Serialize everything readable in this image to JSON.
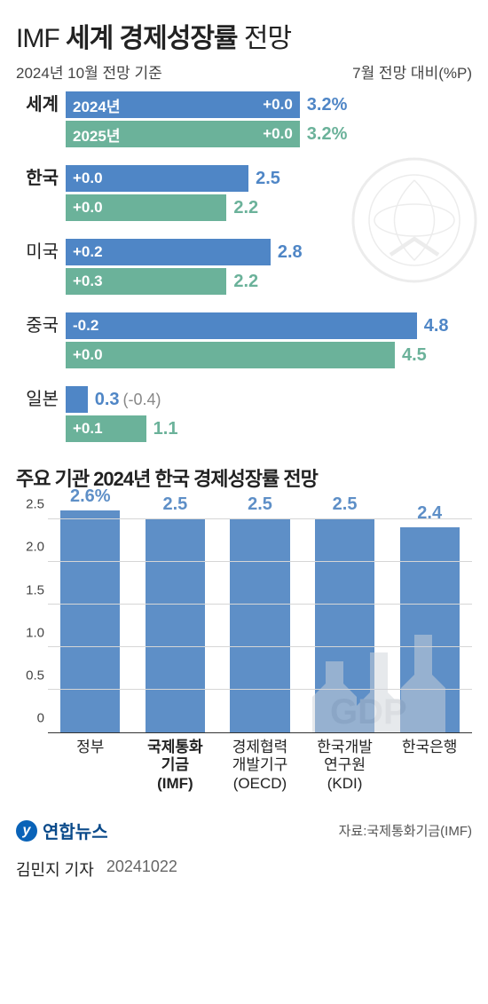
{
  "title_prefix": "IMF",
  "title_bold": "세계 경제성장률",
  "title_suffix": "전망",
  "subhead_left": "2024년 10월 전망 기준",
  "subhead_right": "7월 전망 대비(%P)",
  "hbar": {
    "max_value": 5.0,
    "color_2024": "#4f86c6",
    "color_2025": "#6bb29a",
    "text_color_2024": "#4f86c6",
    "text_color_2025": "#6bb29a",
    "groups": [
      {
        "label": "세계",
        "bold": true,
        "show_year_inside": true,
        "bars": [
          {
            "year": "2024년",
            "value": 3.2,
            "value_text": "3.2%",
            "delta": "+0.0"
          },
          {
            "year": "2025년",
            "value": 3.2,
            "value_text": "3.2%",
            "delta": "+0.0"
          }
        ]
      },
      {
        "label": "한국",
        "bold": true,
        "bars": [
          {
            "value": 2.5,
            "value_text": "2.5",
            "delta": "+0.0"
          },
          {
            "value": 2.2,
            "value_text": "2.2",
            "delta": "+0.0"
          }
        ]
      },
      {
        "label": "미국",
        "bars": [
          {
            "value": 2.8,
            "value_text": "2.8",
            "delta": "+0.2"
          },
          {
            "value": 2.2,
            "value_text": "2.2",
            "delta": "+0.3"
          }
        ]
      },
      {
        "label": "중국",
        "bars": [
          {
            "value": 4.8,
            "value_text": "4.8",
            "delta": "-0.2"
          },
          {
            "value": 4.5,
            "value_text": "4.5",
            "delta": "+0.0"
          }
        ]
      },
      {
        "label": "일본",
        "bars": [
          {
            "value": 0.3,
            "value_text": "0.3",
            "delta": "",
            "extra": "(-0.4)",
            "value_outside_before_extra": true,
            "small": true
          },
          {
            "value": 1.1,
            "value_text": "1.1",
            "delta": "+0.1"
          }
        ]
      }
    ]
  },
  "section2_title": "주요 기관 2024년 한국 경제성장률 전망",
  "vbar": {
    "color": "#5e8fc7",
    "text_color": "#5e8fc7",
    "ymax": 2.7,
    "ytick_step": 0.5,
    "ticks": [
      "0",
      "0.5",
      "1.0",
      "1.5",
      "2.0",
      "2.5"
    ],
    "items": [
      {
        "label_lines": [
          "정부"
        ],
        "value": 2.6,
        "value_text": "2.6%"
      },
      {
        "label_lines": [
          "국제통화",
          "기금",
          "(IMF)"
        ],
        "bold": true,
        "value": 2.5,
        "value_text": "2.5"
      },
      {
        "label_lines": [
          "경제협력",
          "개발기구",
          "(OECD)"
        ],
        "value": 2.5,
        "value_text": "2.5"
      },
      {
        "label_lines": [
          "한국개발",
          "연구원",
          "(KDI)"
        ],
        "value": 2.5,
        "value_text": "2.5"
      },
      {
        "label_lines": [
          "한국은행"
        ],
        "value": 2.4,
        "value_text": "2.4"
      }
    ]
  },
  "footer": {
    "logo_text": "연합뉴스",
    "source": "자료:국제통화기금(IMF)"
  },
  "byline": {
    "author": "김민지 기자",
    "date": "20241022"
  }
}
